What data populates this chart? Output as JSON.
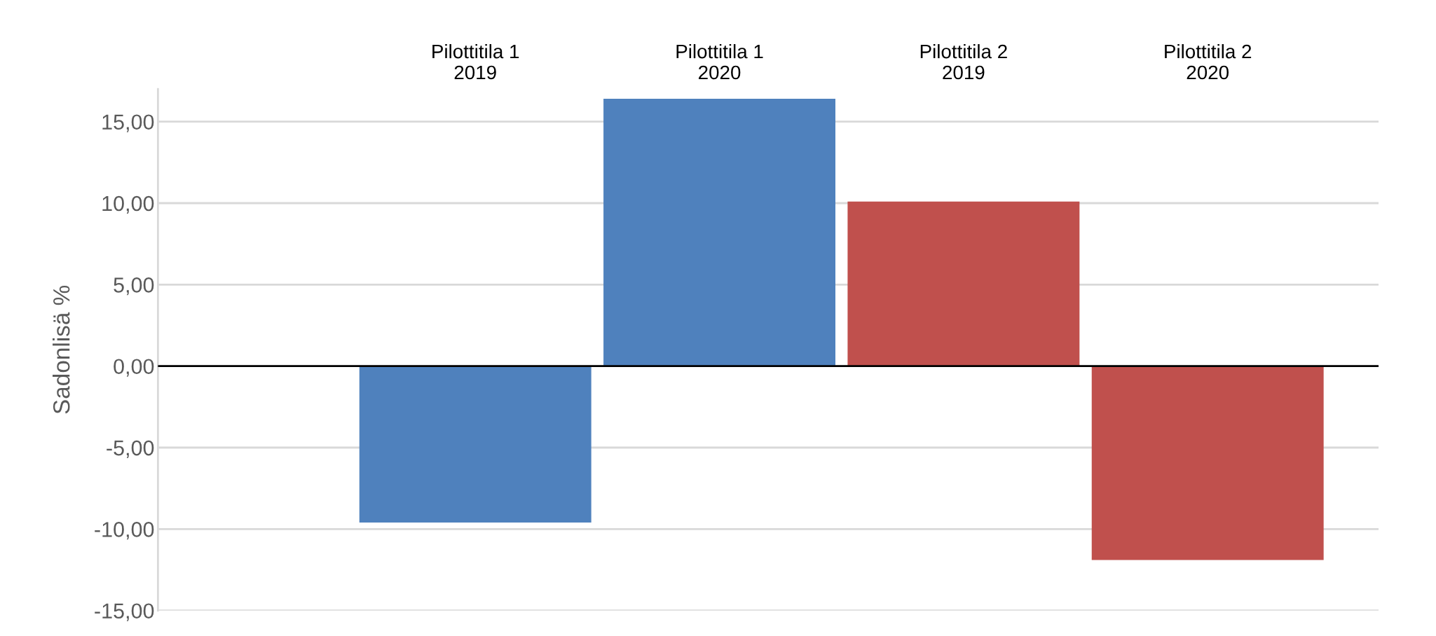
{
  "chart_data": {
    "type": "bar",
    "ylabel": "Sadonlisä %",
    "categories": [
      "Pilottitila 1\n2019",
      "Pilottitila 1\n2020",
      "Pilottitila 2\n2019",
      "Pilottitila 2\n2020"
    ],
    "values": [
      -9.6,
      16.4,
      10.1,
      -11.9
    ],
    "colors": [
      "#4f81bd",
      "#4f81bd",
      "#c0504d",
      "#c0504d"
    ],
    "ylim": [
      -15,
      17
    ],
    "yticks": [
      {
        "value": -15,
        "label": "-15,00"
      },
      {
        "value": -10,
        "label": "-10,00"
      },
      {
        "value": -5,
        "label": "-5,00"
      },
      {
        "value": 0,
        "label": "0,00"
      },
      {
        "value": 5,
        "label": "5,00"
      },
      {
        "value": 10,
        "label": "10,00"
      },
      {
        "value": 15,
        "label": "15,00"
      }
    ],
    "grid": "y",
    "ref_lines": [
      {
        "axis": "y",
        "value": 0,
        "color": "#000000"
      }
    ]
  }
}
